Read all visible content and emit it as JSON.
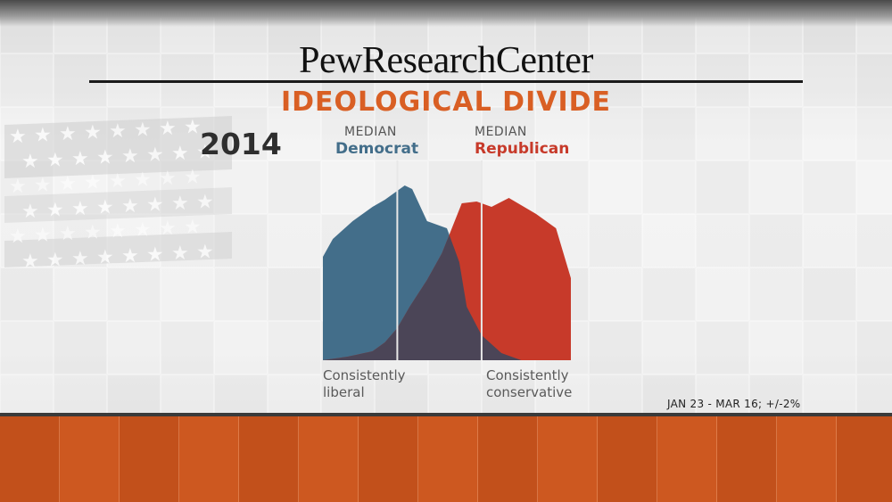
{
  "header": {
    "logo_text": "PewResearchCenter",
    "title": "IDEOLOGICAL DIVIDE",
    "year": "2014"
  },
  "medians": {
    "democrat": {
      "prefix": "MEDIAN",
      "party": "Democrat"
    },
    "republican": {
      "prefix": "MEDIAN",
      "party": "Republican"
    }
  },
  "axis": {
    "left_label_line1": "Consistently",
    "left_label_line2": "liberal",
    "right_label_line1": "Consistently",
    "right_label_line2": "conservative"
  },
  "source_note": "JAN 23 - MAR 16; +/-2%",
  "colors": {
    "democrat": "#436e8a",
    "republican": "#c73a2a",
    "overlap": "#4b4557",
    "title": "#d95f24",
    "band": "#c9541d"
  },
  "chart_data": {
    "type": "area",
    "title": "IDEOLOGICAL DIVIDE",
    "subtitle": "2014",
    "x_scale": "ideology scale (consistently liberal → consistently conservative)",
    "xlim": [
      0,
      1
    ],
    "ylim": [
      0,
      1
    ],
    "grid": false,
    "series": [
      {
        "name": "Democrat",
        "color": "#436e8a",
        "x": [
          0.0,
          0.04,
          0.12,
          0.2,
          0.25,
          0.3,
          0.33,
          0.36,
          0.42,
          0.5,
          0.55,
          0.58,
          0.64,
          0.72,
          0.8,
          0.88,
          0.95,
          1.0
        ],
        "values": [
          0.58,
          0.68,
          0.78,
          0.86,
          0.9,
          0.95,
          0.98,
          0.96,
          0.78,
          0.74,
          0.55,
          0.3,
          0.14,
          0.04,
          0.0,
          0.0,
          0.0,
          0.0
        ]
      },
      {
        "name": "Republican",
        "color": "#c73a2a",
        "x": [
          0.0,
          0.1,
          0.2,
          0.25,
          0.3,
          0.35,
          0.42,
          0.48,
          0.52,
          0.56,
          0.62,
          0.68,
          0.75,
          0.86,
          0.94,
          1.0
        ],
        "values": [
          0.0,
          0.02,
          0.05,
          0.1,
          0.18,
          0.3,
          0.45,
          0.6,
          0.74,
          0.88,
          0.89,
          0.86,
          0.91,
          0.82,
          0.74,
          0.46
        ]
      }
    ],
    "medians": {
      "Democrat": 0.3,
      "Republican": 0.64
    }
  }
}
